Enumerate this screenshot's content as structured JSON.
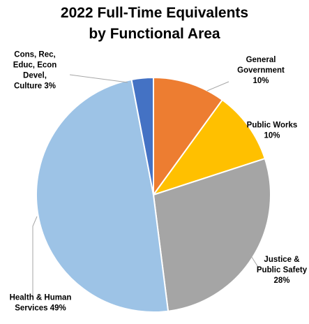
{
  "chart_data": {
    "type": "pie",
    "title_lines": [
      "2022 Full-Time Equivalents",
      "by Functional Area"
    ],
    "start_angle_deg": 0,
    "direction": "clockwise",
    "slices": [
      {
        "name": "General Government",
        "value": 10,
        "color": "#ED7D31",
        "label_lines": [
          "General",
          "Government",
          "10%"
        ]
      },
      {
        "name": "Public Works",
        "value": 10,
        "color": "#FFC000",
        "label_lines": [
          "Public Works",
          "10%"
        ]
      },
      {
        "name": "Justice & Public Safety",
        "value": 28,
        "color": "#A5A5A5",
        "label_lines": [
          "Justice &",
          "Public Safety",
          "28%"
        ]
      },
      {
        "name": "Health & Human Services",
        "value": 49,
        "color": "#9DC3E6",
        "label_lines": [
          "Health & Human",
          "Services 49%"
        ]
      },
      {
        "name": "Cons, Rec, Educ, Econ Devel, Culture",
        "value": 3,
        "color": "#4472C4",
        "label_lines": [
          "Cons, Rec,",
          "Educ, Econ",
          "Devel,",
          "Culture 3%"
        ]
      }
    ]
  }
}
